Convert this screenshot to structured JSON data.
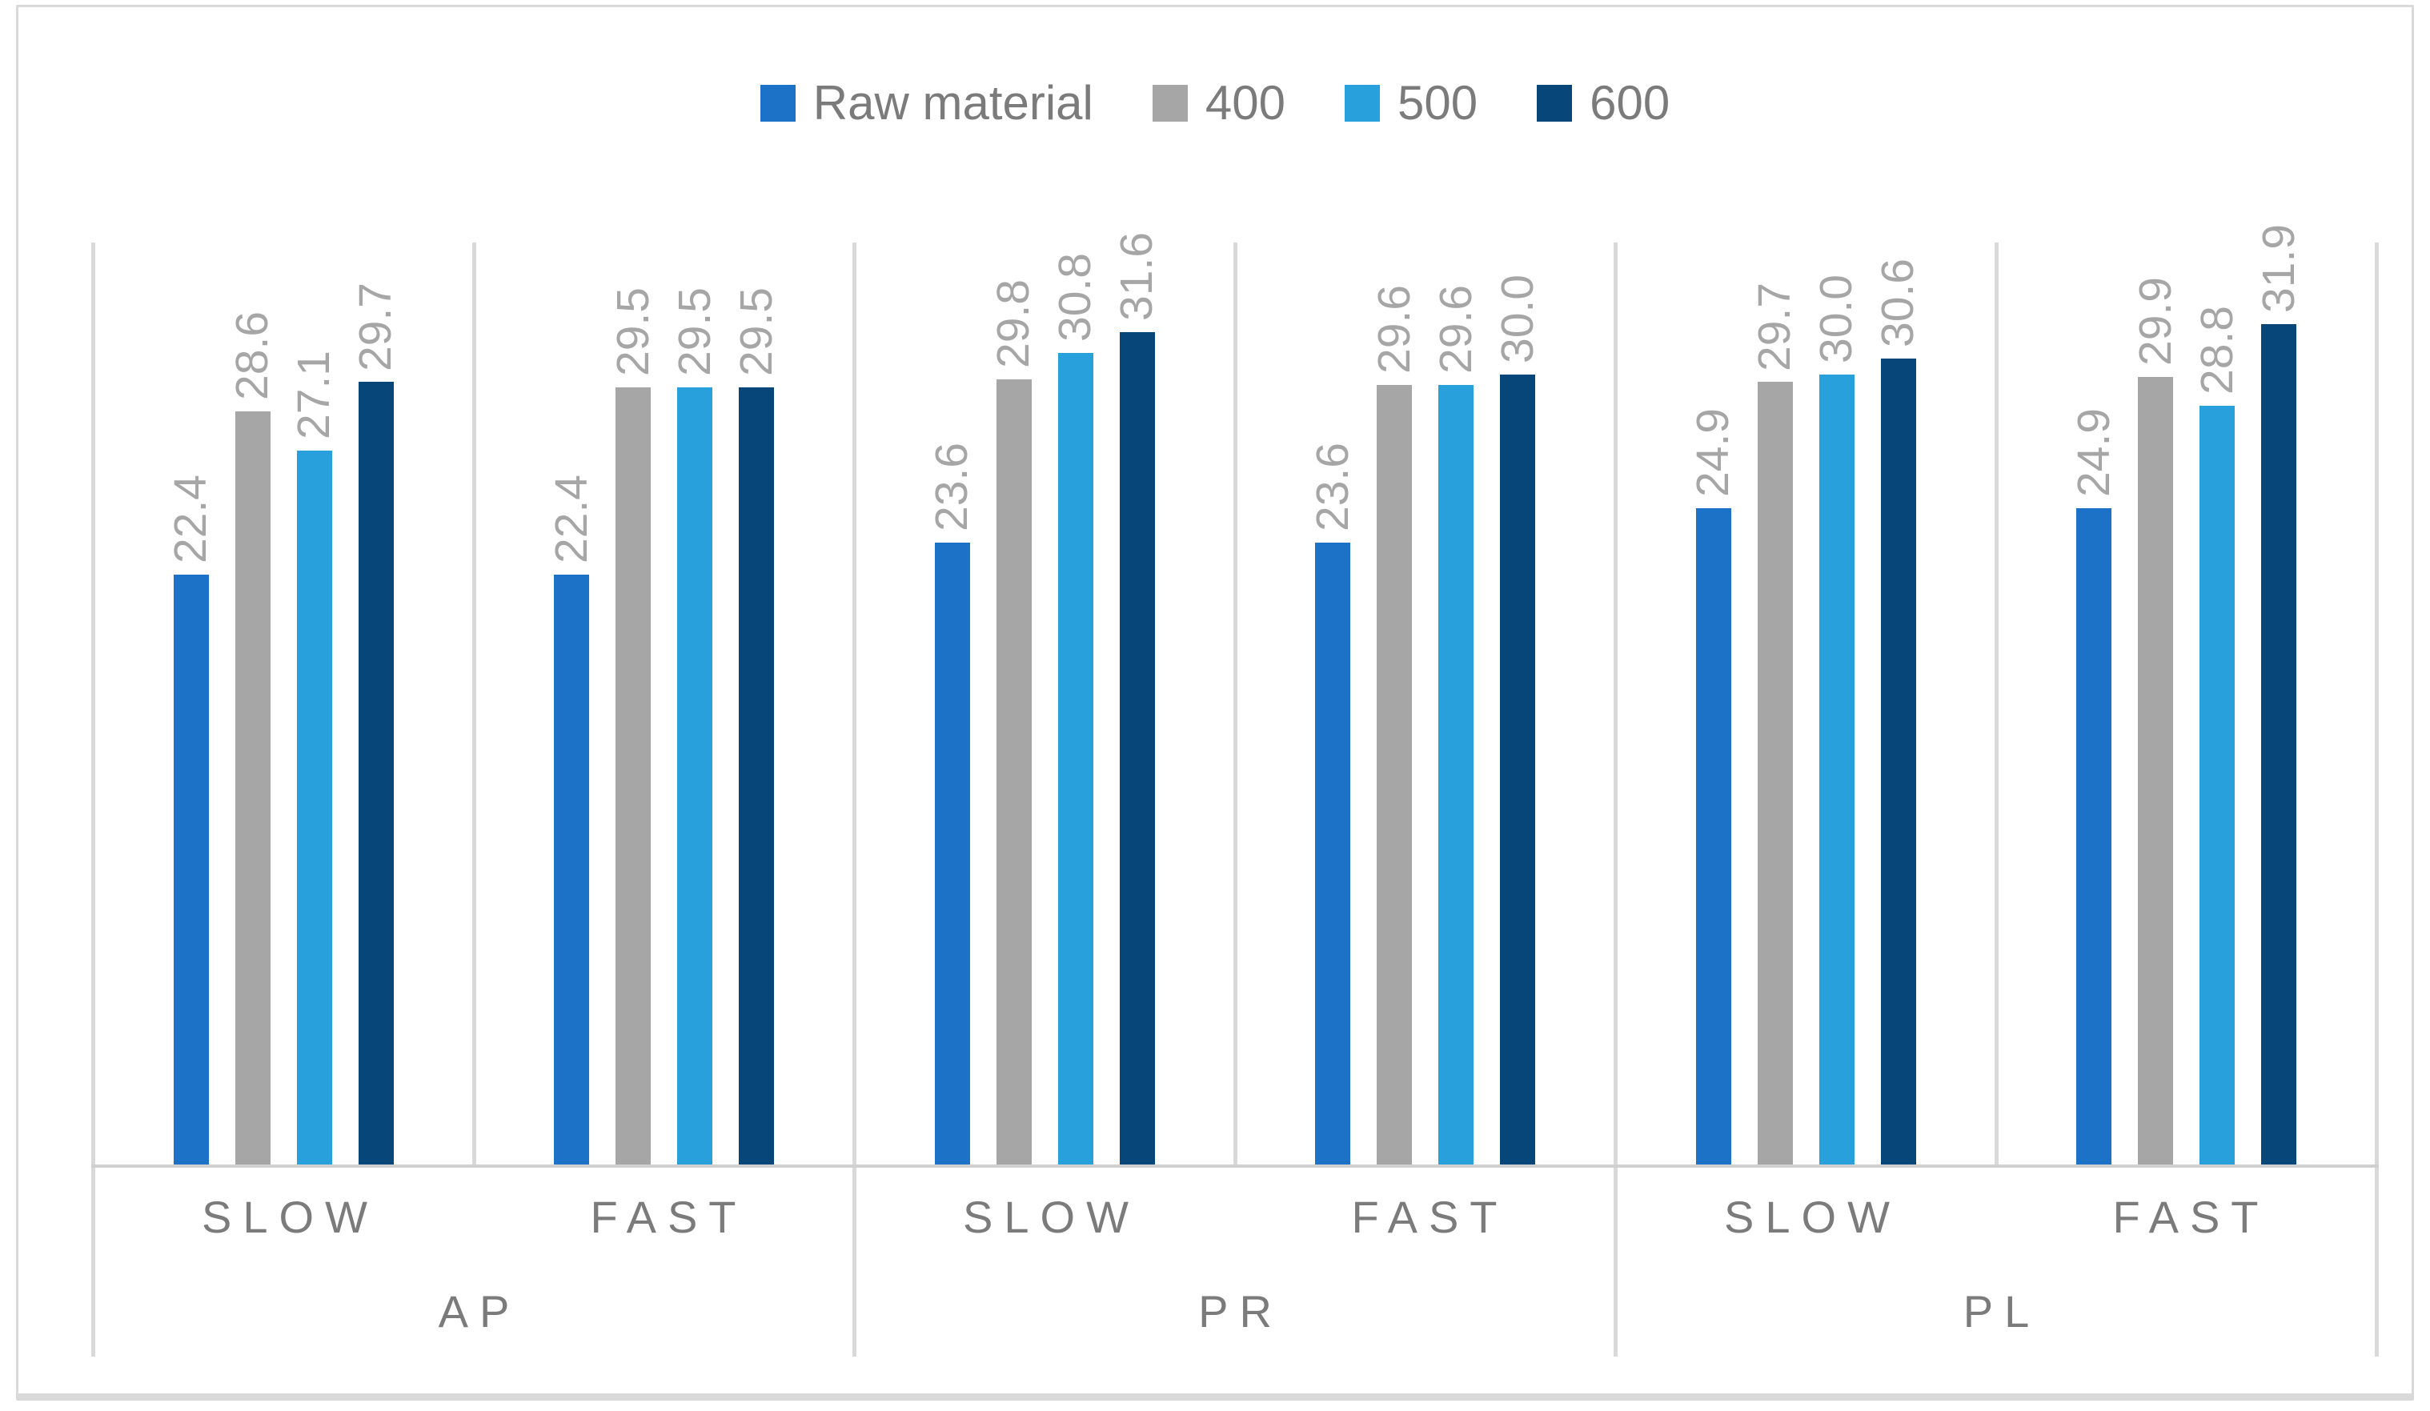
{
  "legend": {
    "items": [
      {
        "key": "raw-material",
        "label": "Raw material",
        "color": "#1b72c7"
      },
      {
        "key": "400",
        "label": "400",
        "color": "#a6a6a6"
      },
      {
        "key": "500",
        "label": "500",
        "color": "#28a0db"
      },
      {
        "key": "600",
        "label": "600",
        "color": "#074679"
      }
    ]
  },
  "chart_data": {
    "type": "bar",
    "title": "",
    "xlabel": "",
    "ylabel": "",
    "ylim": [
      0,
      35
    ],
    "grid": "vertical panel dividers only, no horizontal gridlines, no y-axis labels",
    "legend_position": "top-center",
    "value_label_rotation": 90,
    "value_label_format": "0.0",
    "series_names": [
      "Raw material",
      "400",
      "500",
      "600"
    ],
    "series_colors": [
      "#1b72c7",
      "#a6a6a6",
      "#28a0db",
      "#074679"
    ],
    "sections": [
      {
        "label": "AP",
        "speeds": [
          "SLOW",
          "FAST"
        ]
      },
      {
        "label": "PR",
        "speeds": [
          "SLOW",
          "FAST"
        ]
      },
      {
        "label": "PL",
        "speeds": [
          "SLOW",
          "FAST"
        ]
      }
    ],
    "groups": [
      {
        "section": "AP",
        "speed": "SLOW",
        "values": [
          22.4,
          28.6,
          27.1,
          29.7
        ]
      },
      {
        "section": "AP",
        "speed": "FAST",
        "values": [
          22.4,
          29.5,
          29.5,
          29.5
        ]
      },
      {
        "section": "PR",
        "speed": "SLOW",
        "values": [
          23.6,
          29.8,
          30.8,
          31.6
        ]
      },
      {
        "section": "PR",
        "speed": "FAST",
        "values": [
          23.6,
          29.6,
          29.6,
          30.0
        ]
      },
      {
        "section": "PL",
        "speed": "SLOW",
        "values": [
          24.9,
          29.7,
          30.0,
          30.6
        ]
      },
      {
        "section": "PL",
        "speed": "FAST",
        "values": [
          24.9,
          29.9,
          28.8,
          31.9
        ]
      }
    ],
    "colors": {
      "grid_line": "#d9d9d9",
      "axis_line": "#d0d0d0",
      "frame_border": "#d9d9d9",
      "data_label_text": "#a6a6a6",
      "axis_label_text": "#7b7b7b",
      "legend_text": "#7b7b7b"
    }
  }
}
